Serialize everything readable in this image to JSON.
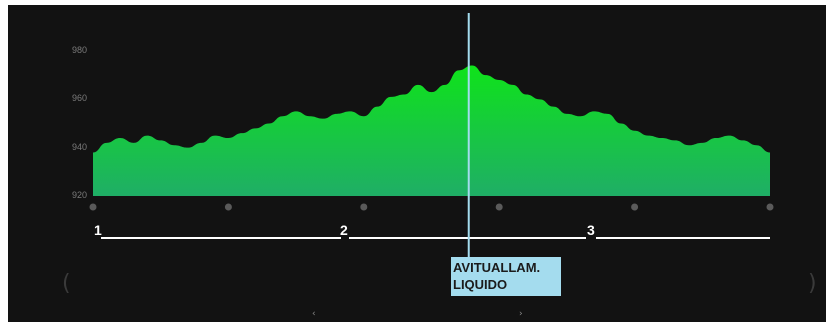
{
  "chart_data": {
    "type": "area",
    "ylim": [
      920,
      980
    ],
    "y_ticks": [
      "980",
      "960",
      "940",
      "920"
    ],
    "x": [
      0,
      2,
      4,
      6,
      8,
      10,
      12,
      14,
      16,
      18,
      20,
      22,
      24,
      26,
      28,
      30,
      32,
      34,
      36,
      38,
      40,
      42,
      44,
      46,
      48,
      50,
      52,
      54,
      56,
      58,
      60,
      62,
      64,
      66,
      68,
      70,
      72,
      74,
      76,
      78,
      80,
      82,
      84,
      86,
      88,
      90,
      92,
      94,
      96,
      98,
      100
    ],
    "values": [
      938,
      942,
      944,
      942,
      945,
      943,
      941,
      940,
      942,
      945,
      944,
      946,
      948,
      950,
      953,
      955,
      953,
      952,
      954,
      955,
      953,
      957,
      961,
      962,
      966,
      963,
      966,
      972,
      974,
      970,
      968,
      966,
      962,
      960,
      957,
      954,
      953,
      955,
      954,
      950,
      947,
      945,
      944,
      943,
      941,
      942,
      944,
      945,
      943,
      941,
      938
    ],
    "grid": false,
    "colors": {
      "top": "#0fe31a",
      "bottom": "#1fae66",
      "marker_line": "#a4dcee",
      "dot": "#5a5a5a"
    }
  },
  "stages": [
    {
      "label": "1"
    },
    {
      "label": "2"
    },
    {
      "label": "3"
    }
  ],
  "marker": {
    "line1": "AVITUALLAM.",
    "line2": "LIQUIDO",
    "position_fraction": 0.555
  },
  "decorations": {
    "left_paren": "(",
    "right_paren": ")",
    "nav_prev": "‹",
    "nav_next": "›"
  }
}
